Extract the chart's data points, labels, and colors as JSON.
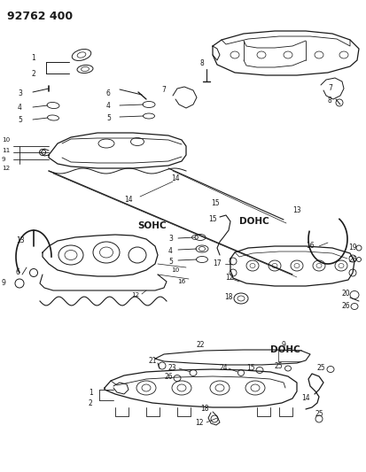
{
  "title": "92762 400",
  "bg_color": "#ffffff",
  "line_color": "#1a1a1a",
  "text_color": "#1a1a1a",
  "fig_width": 4.13,
  "fig_height": 5.33,
  "dpi": 100,
  "sohc_label": "SOHC",
  "dohc_label": "DOHC"
}
